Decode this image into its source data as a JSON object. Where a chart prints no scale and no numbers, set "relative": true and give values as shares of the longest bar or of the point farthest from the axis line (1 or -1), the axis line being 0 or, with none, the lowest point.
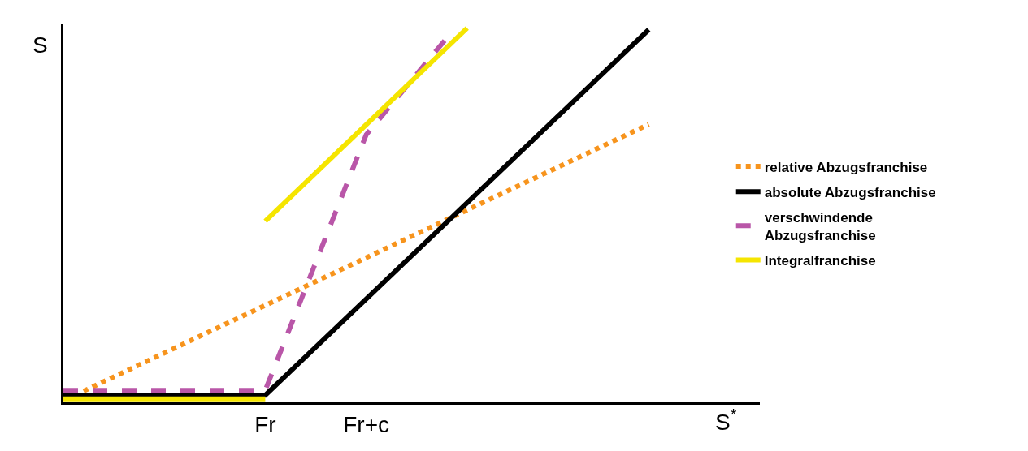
{
  "chart_data": {
    "type": "line",
    "relative": true,
    "xlabel": "S$^{*}$",
    "ylabel": "S",
    "categories": [
      null,
      null,
      null,
      null,
      null,
      null,
      null,
      null,
      null,
      null,
      "Fr",
      null,
      null,
      null,
      null,
      "Fr+c",
      null,
      null,
      null,
      null,
      null,
      null,
      null,
      null,
      null,
      null,
      null,
      null,
      null,
      null,
      null,
      null,
      null,
      null,
      null
    ],
    "legend": "right",
    "marker": "none",
    "series": [
      {
        "name": "relative Abzugsfranchise",
        "color": "#f7941d",
        "line_style": "dotted",
        "values": [
          null,
          0.03,
          null,
          null,
          null,
          null,
          null,
          null,
          null,
          null,
          null,
          null,
          null,
          null,
          null,
          null,
          null,
          null,
          null,
          null,
          null,
          null,
          null,
          null,
          null,
          null,
          null,
          null,
          null,
          0.743,
          null,
          null,
          null,
          null,
          null
        ]
      },
      {
        "name": "absolute Abzugsfranchise",
        "color": "#000000",
        "line_style": "solid",
        "values": [
          0.019,
          null,
          null,
          null,
          null,
          null,
          null,
          null,
          null,
          null,
          0.019,
          null,
          null,
          null,
          null,
          null,
          null,
          null,
          null,
          null,
          null,
          null,
          null,
          null,
          null,
          null,
          null,
          null,
          null,
          0.996,
          null,
          null,
          null,
          null,
          null
        ]
      },
      {
        "name": "verschwindende\nAbzugsfranchise",
        "color": "#b956a8",
        "line_style": "dashed",
        "values": [
          0.032,
          null,
          null,
          null,
          null,
          null,
          null,
          null,
          null,
          null,
          0.032,
          null,
          null,
          null,
          null,
          0.715,
          null,
          null,
          null,
          0.974,
          null,
          null,
          null,
          null,
          null,
          null,
          null,
          null,
          null,
          null,
          null,
          null,
          null,
          null,
          null
        ]
      },
      {
        "name": "Integralfranchise",
        "color": "#f5e500",
        "line_style": "solid",
        "values": [
          0.009,
          null,
          null,
          null,
          null,
          null,
          null,
          null,
          null,
          null,
          0.009,
          null,
          null,
          null,
          null,
          null,
          null,
          null,
          null,
          null,
          null,
          null,
          null,
          null,
          null,
          null,
          null,
          null,
          null,
          null,
          null,
          null,
          null,
          null,
          null
        ]
      },
      {
        "color": "#f5e500",
        "line_style": "solid",
        "values": [
          null,
          null,
          null,
          null,
          null,
          null,
          null,
          null,
          null,
          null,
          0.484,
          null,
          null,
          null,
          null,
          null,
          null,
          null,
          null,
          null,
          1.0,
          null,
          null,
          null,
          null,
          null,
          null,
          null,
          null,
          null,
          null,
          null,
          null,
          null,
          null
        ]
      }
    ]
  }
}
